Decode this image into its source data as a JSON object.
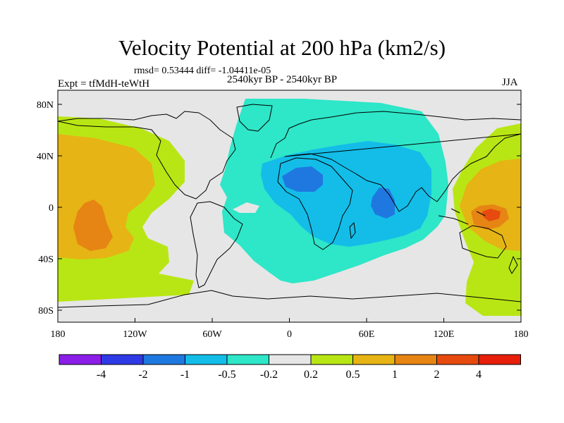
{
  "title": "Velocity Potential at 200 hPa (km2/s)",
  "stats_line": "rmsd= 0.53444 diff= -1.04411e-05",
  "experiment": "Expt = tfMdH-teWtH",
  "period": "2540kyr BP - 2540kyr BP",
  "season": "JJA",
  "axes": {
    "lat_labels": [
      "80N",
      "40N",
      "0",
      "40S",
      "80S"
    ],
    "lon_labels": [
      "180",
      "120W",
      "60W",
      "0",
      "60E",
      "120E",
      "180"
    ]
  },
  "colorbar": {
    "labels": [
      "-4",
      "-2",
      "-1",
      "-0.5",
      "-0.2",
      "0.2",
      "0.5",
      "1",
      "2",
      "4"
    ],
    "colors": [
      "#8a1ee8",
      "#2e3ae6",
      "#1f78e0",
      "#13bde8",
      "#2ee6c8",
      "#e6e6e6",
      "#b8e614",
      "#e6b414",
      "#e68414",
      "#e64a0e",
      "#e61e0a"
    ]
  }
}
